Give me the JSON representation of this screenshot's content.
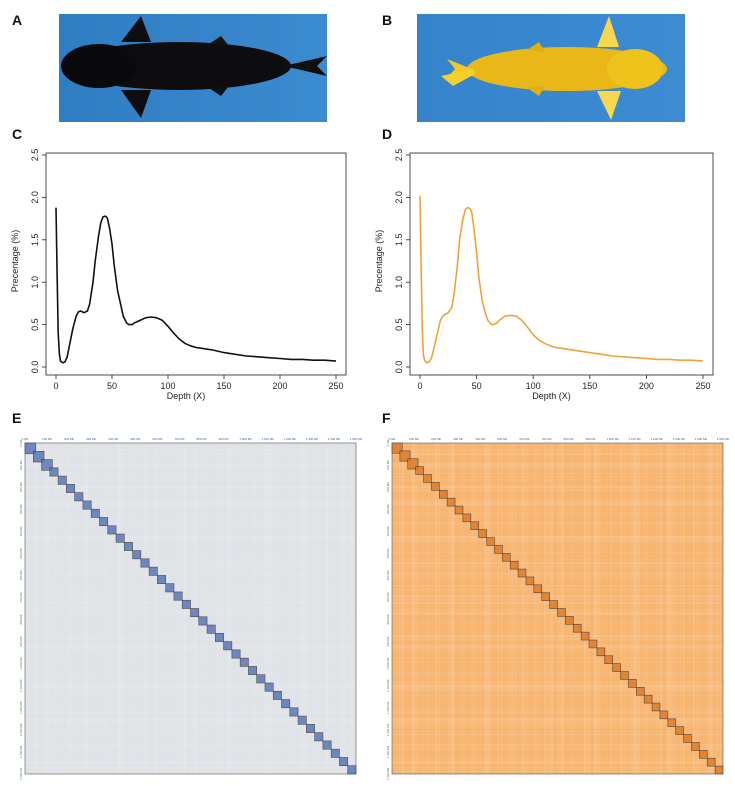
{
  "panels": {
    "a": "A",
    "b": "B",
    "c": "C",
    "d": "D",
    "e": "E",
    "f": "F"
  },
  "photos": {
    "a": {
      "subject": "black koi fish, dorsal view",
      "background": "#3a86c8"
    },
    "b": {
      "subject": "yellow koi fish, dorsal view",
      "background": "#3b8ad0"
    }
  },
  "colors": {
    "black_line": "#111111",
    "orange_line": "#f0a23a",
    "heat_grey": "#dfe2e6",
    "heat_orange": "#f7b56f",
    "diag_blue": "#5a78b8",
    "diag_orange": "#e07b2a"
  },
  "chart_data": [
    {
      "id": "C",
      "type": "line",
      "title": "",
      "xlabel": "Depth (X)",
      "ylabel": "Precentage (%)",
      "xlim": [
        0,
        250
      ],
      "ylim": [
        0,
        2.5
      ],
      "xticks": [
        "0",
        "50",
        "100",
        "150",
        "200",
        "250"
      ],
      "yticks": [
        "0.0",
        "0.5",
        "1.0",
        "1.5",
        "2.0",
        "2.5"
      ],
      "series": [
        {
          "name": "black koi",
          "color": "#111111",
          "x": [
            0,
            1,
            2,
            3,
            4,
            6,
            8,
            10,
            12,
            15,
            18,
            20,
            22,
            25,
            28,
            30,
            33,
            35,
            38,
            40,
            42,
            44,
            45,
            46,
            48,
            50,
            52,
            55,
            58,
            60,
            63,
            65,
            68,
            70,
            75,
            80,
            85,
            90,
            95,
            100,
            105,
            110,
            115,
            120,
            125,
            130,
            140,
            150,
            160,
            170,
            180,
            190,
            200,
            210,
            220,
            230,
            240,
            250
          ],
          "y": [
            1.88,
            1.1,
            0.4,
            0.15,
            0.07,
            0.05,
            0.06,
            0.12,
            0.25,
            0.45,
            0.6,
            0.65,
            0.66,
            0.64,
            0.66,
            0.74,
            1.0,
            1.25,
            1.55,
            1.7,
            1.77,
            1.78,
            1.77,
            1.75,
            1.62,
            1.45,
            1.2,
            0.9,
            0.72,
            0.6,
            0.52,
            0.5,
            0.5,
            0.52,
            0.55,
            0.58,
            0.59,
            0.58,
            0.55,
            0.48,
            0.4,
            0.33,
            0.28,
            0.25,
            0.23,
            0.22,
            0.2,
            0.17,
            0.15,
            0.13,
            0.12,
            0.11,
            0.1,
            0.09,
            0.09,
            0.08,
            0.08,
            0.07
          ]
        }
      ]
    },
    {
      "id": "D",
      "type": "line",
      "title": "",
      "xlabel": "Depth (X)",
      "ylabel": "Precentage (%)",
      "xlim": [
        0,
        250
      ],
      "ylim": [
        0,
        2.5
      ],
      "xticks": [
        "0",
        "50",
        "100",
        "150",
        "200",
        "250"
      ],
      "yticks": [
        "0.0",
        "0.5",
        "1.0",
        "1.5",
        "2.0",
        "2.5"
      ],
      "series": [
        {
          "name": "yellow koi",
          "color": "#f0a23a",
          "x": [
            0,
            1,
            2,
            3,
            4,
            6,
            8,
            10,
            12,
            15,
            18,
            20,
            22,
            25,
            28,
            30,
            33,
            35,
            38,
            40,
            42,
            44,
            45,
            46,
            48,
            50,
            52,
            55,
            58,
            60,
            63,
            65,
            68,
            70,
            75,
            80,
            85,
            90,
            95,
            100,
            105,
            110,
            115,
            120,
            125,
            130,
            140,
            150,
            160,
            170,
            180,
            190,
            200,
            210,
            220,
            230,
            240,
            250
          ],
          "y": [
            2.02,
            1.2,
            0.45,
            0.15,
            0.08,
            0.05,
            0.06,
            0.1,
            0.2,
            0.38,
            0.55,
            0.6,
            0.62,
            0.64,
            0.7,
            0.85,
            1.2,
            1.5,
            1.75,
            1.85,
            1.88,
            1.87,
            1.85,
            1.8,
            1.6,
            1.35,
            1.05,
            0.78,
            0.62,
            0.55,
            0.5,
            0.5,
            0.52,
            0.55,
            0.6,
            0.61,
            0.6,
            0.55,
            0.47,
            0.38,
            0.32,
            0.28,
            0.25,
            0.23,
            0.22,
            0.21,
            0.19,
            0.17,
            0.15,
            0.13,
            0.12,
            0.11,
            0.1,
            0.09,
            0.09,
            0.08,
            0.08,
            0.07
          ]
        }
      ]
    },
    {
      "id": "E",
      "type": "heatmap",
      "description_labels": [
        "0 Mb",
        "100 Mb",
        "200 Mb",
        "300 Mb",
        "400 Mb",
        "500 Mb",
        "600 Mb",
        "700 Mb",
        "800 Mb",
        "900 Mb",
        "1,000 Mb",
        "1,100 Mb",
        "1,200 Mb",
        "1,300 Mb",
        "1,400 Mb",
        "1,500 Mb"
      ],
      "blocks": 40,
      "base_color": "#dfe2e6",
      "diag_color": "#5a78b8"
    },
    {
      "id": "F",
      "type": "heatmap",
      "description_labels": [
        "0 Mb",
        "100 Mb",
        "200 Mb",
        "300 Mb",
        "400 Mb",
        "500 Mb",
        "600 Mb",
        "700 Mb",
        "800 Mb",
        "900 Mb",
        "1,000 Mb",
        "1,100 Mb",
        "1,200 Mb",
        "1,300 Mb",
        "1,400 Mb",
        "1,500 Mb"
      ],
      "blocks": 42,
      "base_color": "#f7b56f",
      "diag_color": "#e07b2a"
    }
  ]
}
